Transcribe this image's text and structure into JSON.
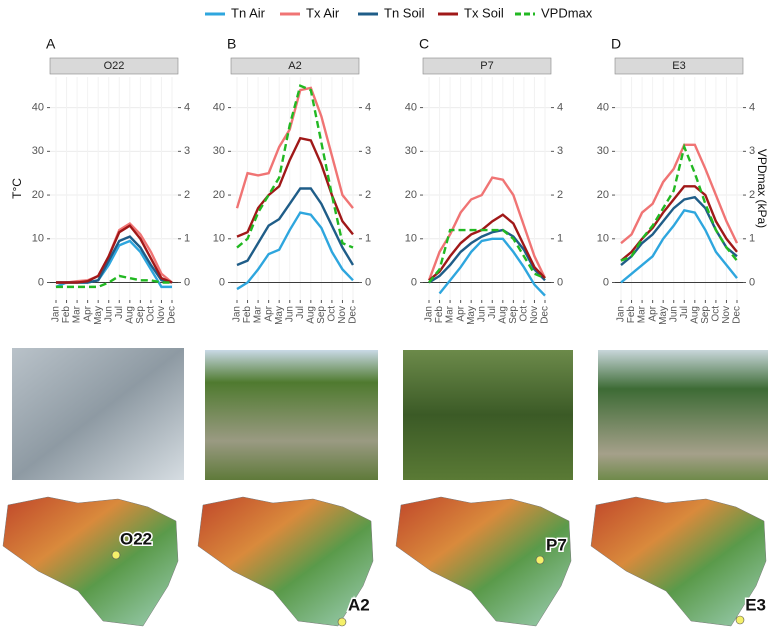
{
  "chart_data": {
    "type": "line",
    "categories": [
      "Jan",
      "Feb",
      "Mar",
      "Apr",
      "May",
      "Jun",
      "Jul",
      "Aug",
      "Sep",
      "Oct",
      "Nov",
      "Dec"
    ],
    "series": [
      {
        "name": "Tn Air",
        "color": "#2ea6de"
      },
      {
        "name": "Tx Air",
        "color": "#f07474"
      },
      {
        "name": "Tn Soil",
        "color": "#1f5d88"
      },
      {
        "name": "Tx Soil",
        "color": "#a01818"
      },
      {
        "name": "VPDmax",
        "color": "#22b822",
        "axis": "y2",
        "dashed": true
      }
    ],
    "ylabel": "T°C",
    "y2label": "VPDmax (kPa)",
    "ylim": [
      -4,
      47
    ],
    "yticks": [
      0,
      10,
      20,
      30,
      40
    ],
    "y2lim": [
      -0.4,
      4.7
    ],
    "y2ticks": [
      0,
      1,
      2,
      3,
      4
    ],
    "grid": true,
    "panels": [
      {
        "label": "A",
        "title": "O22",
        "values": [
          [
            -1,
            0,
            0,
            0,
            0.5,
            4,
            8.5,
            9.5,
            7,
            3,
            -1,
            -1
          ],
          [
            0,
            0,
            0.3,
            0.5,
            1.5,
            6,
            12,
            13.5,
            11,
            7,
            2,
            0
          ],
          [
            0,
            0,
            0,
            0,
            0.5,
            5,
            9.5,
            10.5,
            8,
            4,
            0.5,
            0
          ],
          [
            0,
            0,
            0,
            0.3,
            1.5,
            6,
            11.5,
            13,
            10,
            5.5,
            1,
            0
          ],
          [
            -0.1,
            -0.1,
            -0.1,
            -0.1,
            -0.1,
            0,
            0.15,
            0.1,
            0.05,
            0.05,
            0,
            0
          ]
        ]
      },
      {
        "label": "B",
        "title": "A2",
        "values": [
          [
            -1.5,
            0,
            3,
            6.5,
            7.5,
            12,
            16,
            15.5,
            12.5,
            7,
            3,
            0.5
          ],
          [
            17,
            25,
            24.5,
            25,
            31,
            35,
            44,
            44.5,
            38,
            29,
            20,
            17
          ],
          [
            4,
            5,
            9,
            13,
            14.5,
            18,
            21.5,
            21.5,
            18,
            13,
            8,
            4
          ],
          [
            10.5,
            11.5,
            17,
            20,
            22,
            28,
            33,
            32.5,
            27,
            20,
            14,
            11
          ],
          [
            0.8,
            1.0,
            1.6,
            2.0,
            2.4,
            3.6,
            4.5,
            4.4,
            3.2,
            2.0,
            0.9,
            0.8
          ]
        ]
      },
      {
        "label": "C",
        "title": "P7",
        "values": [
          [
            null,
            -2.5,
            0.5,
            3.5,
            7,
            9.5,
            10,
            10,
            7,
            3.5,
            -0.5,
            -3
          ],
          [
            0.5,
            7,
            11,
            16,
            19,
            20,
            24,
            23.5,
            20,
            13,
            6,
            1
          ],
          [
            0,
            1.5,
            4,
            7,
            9,
            10.5,
            11.5,
            12,
            10.5,
            7.5,
            3,
            0.5
          ],
          [
            0.5,
            2.5,
            6,
            9,
            11,
            12,
            14,
            15.5,
            13.5,
            8.5,
            3.5,
            1
          ],
          [
            0,
            0.3,
            1.2,
            1.2,
            1.2,
            1.2,
            1.2,
            1.2,
            1.0,
            0.6,
            0.2,
            0.1
          ]
        ]
      },
      {
        "label": "D",
        "title": "E3",
        "values": [
          [
            0,
            2,
            4,
            6,
            10,
            13,
            16.5,
            16,
            12,
            7,
            4,
            1
          ],
          [
            9,
            11,
            16,
            18,
            23,
            26,
            31.5,
            31.5,
            26,
            20,
            14,
            9
          ],
          [
            4,
            6,
            9,
            11,
            14,
            17,
            19,
            19.5,
            17,
            12,
            8,
            6
          ],
          [
            5,
            7,
            10,
            12.5,
            16,
            19,
            22,
            22,
            20,
            14,
            10,
            7
          ],
          [
            0.5,
            0.6,
            1.0,
            1.3,
            1.7,
            2.1,
            3.1,
            2.5,
            1.8,
            1.2,
            0.8,
            0.5
          ]
        ]
      }
    ]
  }
}
